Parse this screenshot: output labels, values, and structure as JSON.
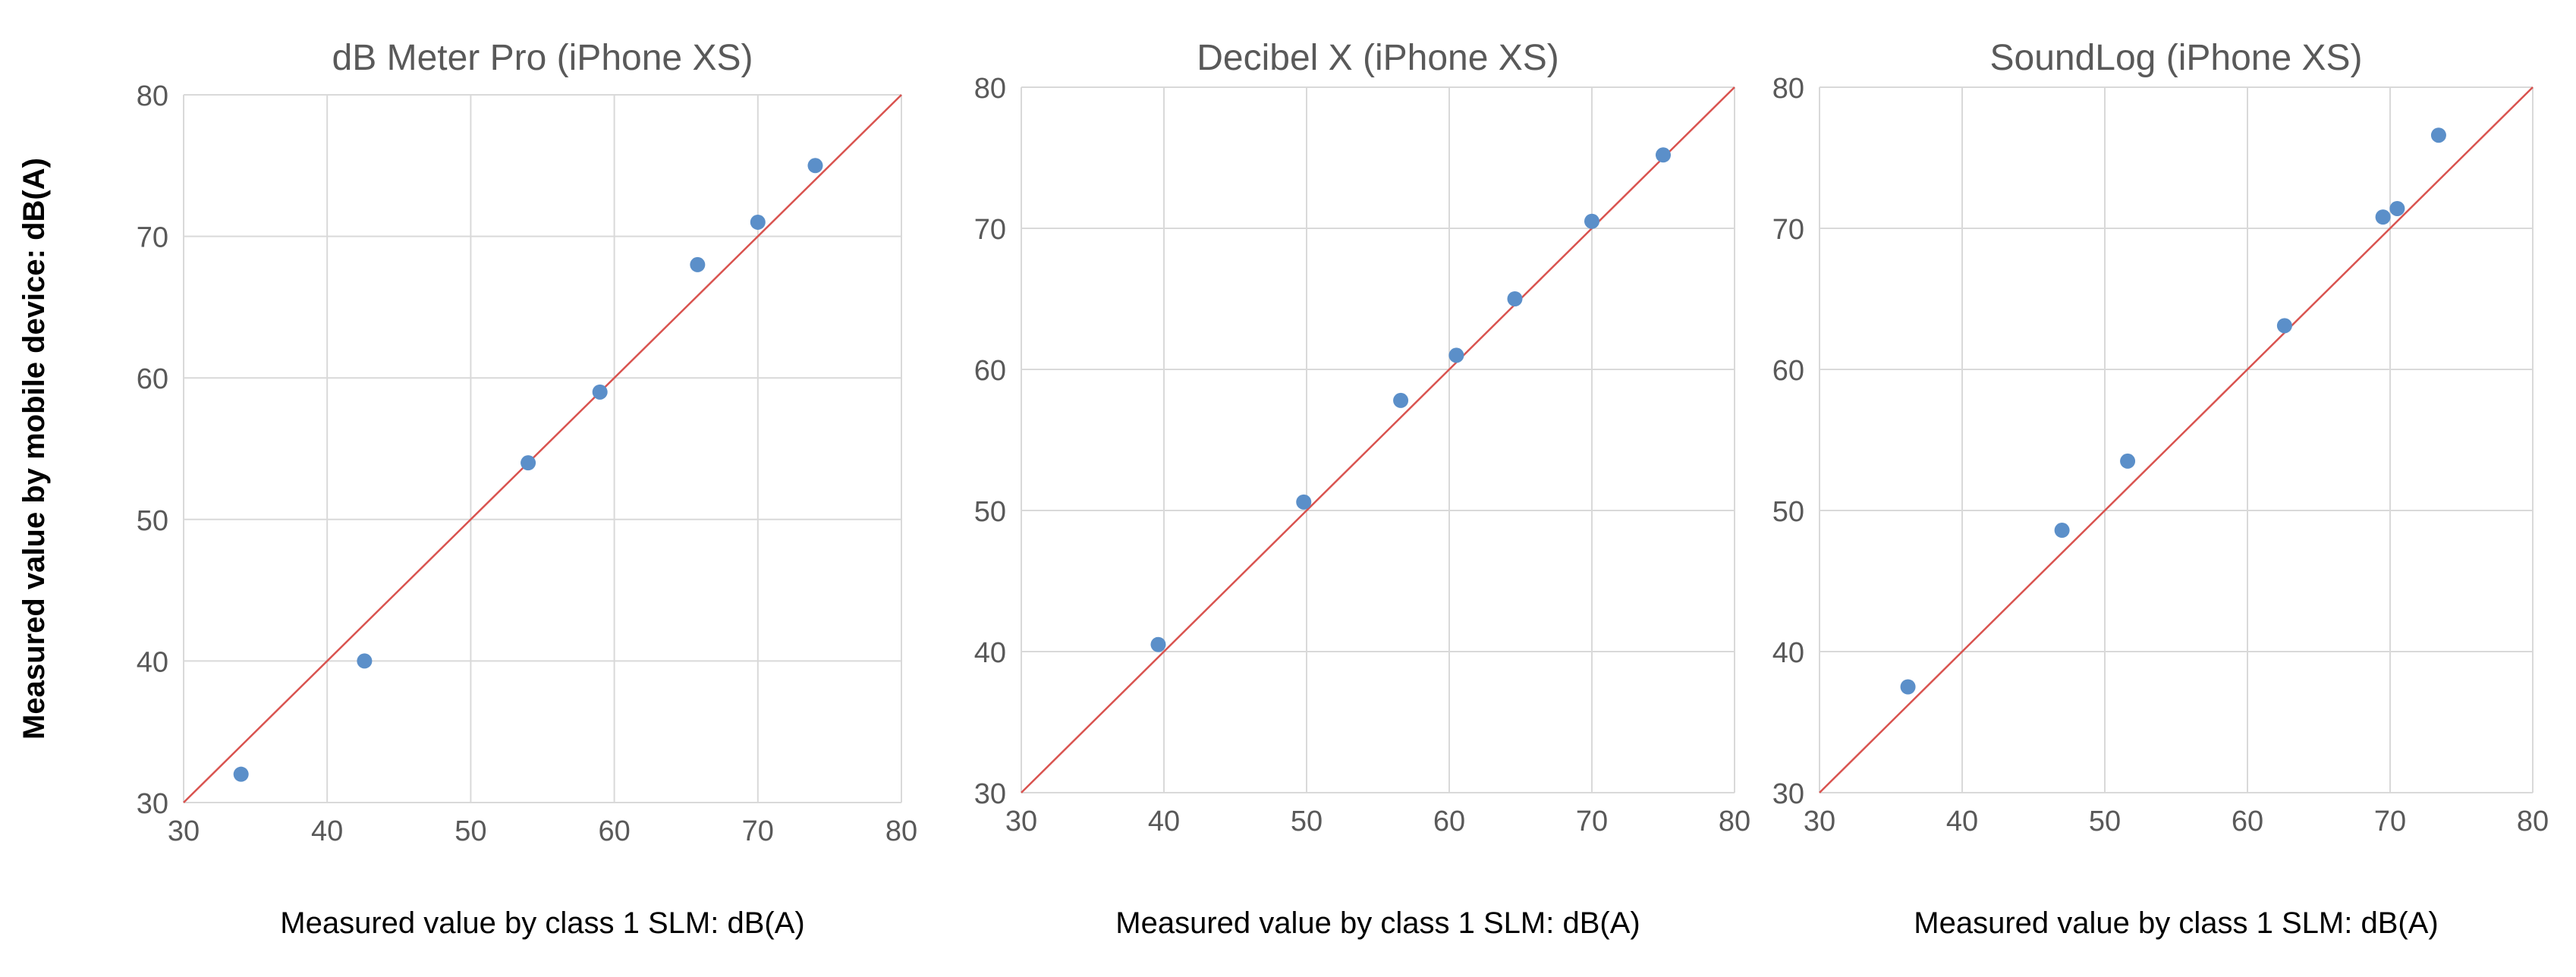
{
  "chart_data": [
    {
      "type": "scatter",
      "title": "dB Meter Pro (iPhone XS)",
      "xlabel": "Measured value by class 1 SLM: dB(A)",
      "ylabel": "Measured value by mobile device: dB(A)",
      "xlim": [
        30,
        80
      ],
      "ylim": [
        30,
        80
      ],
      "xticks": [
        "30",
        "40",
        "50",
        "60",
        "70",
        "80"
      ],
      "yticks": [
        "30",
        "40",
        "50",
        "60",
        "70",
        "80"
      ],
      "grid": true,
      "reference_line": {
        "from": [
          30,
          30
        ],
        "to": [
          80,
          80
        ],
        "color": "#d9534f"
      },
      "marker_color": "#5b8fc9",
      "points": [
        {
          "x": 34,
          "y": 32
        },
        {
          "x": 42.6,
          "y": 40
        },
        {
          "x": 54,
          "y": 54
        },
        {
          "x": 59,
          "y": 59
        },
        {
          "x": 65.8,
          "y": 68
        },
        {
          "x": 70,
          "y": 71
        },
        {
          "x": 74,
          "y": 75
        }
      ]
    },
    {
      "type": "scatter",
      "title": "Decibel X (iPhone XS)",
      "xlabel": "Measured value by class 1 SLM: dB(A)",
      "ylabel": "",
      "xlim": [
        30,
        80
      ],
      "ylim": [
        30,
        80
      ],
      "xticks": [
        "30",
        "40",
        "50",
        "60",
        "70",
        "80"
      ],
      "yticks": [
        "30",
        "40",
        "50",
        "60",
        "70",
        "80"
      ],
      "grid": true,
      "reference_line": {
        "from": [
          30,
          30
        ],
        "to": [
          80,
          80
        ],
        "color": "#d9534f"
      },
      "marker_color": "#5b8fc9",
      "points": [
        {
          "x": 39.6,
          "y": 40.5
        },
        {
          "x": 49.8,
          "y": 50.6
        },
        {
          "x": 56.6,
          "y": 57.8
        },
        {
          "x": 60.5,
          "y": 61
        },
        {
          "x": 64.6,
          "y": 65
        },
        {
          "x": 70,
          "y": 70.5
        },
        {
          "x": 75,
          "y": 75.2
        }
      ]
    },
    {
      "type": "scatter",
      "title": "SoundLog  (iPhone XS)",
      "xlabel": "Measured value by class 1 SLM: dB(A)",
      "ylabel": "",
      "xlim": [
        30,
        80
      ],
      "ylim": [
        30,
        80
      ],
      "xticks": [
        "30",
        "40",
        "50",
        "60",
        "70",
        "80"
      ],
      "yticks": [
        "30",
        "40",
        "50",
        "60",
        "70",
        "80"
      ],
      "grid": true,
      "reference_line": {
        "from": [
          30,
          30
        ],
        "to": [
          80,
          80
        ],
        "color": "#d9534f"
      },
      "marker_color": "#5b8fc9",
      "points": [
        {
          "x": 36.2,
          "y": 37.5
        },
        {
          "x": 47,
          "y": 48.6
        },
        {
          "x": 51.6,
          "y": 53.5
        },
        {
          "x": 62.6,
          "y": 63.1
        },
        {
          "x": 69.5,
          "y": 70.8
        },
        {
          "x": 70.5,
          "y": 71.4
        },
        {
          "x": 73.4,
          "y": 76.6
        }
      ]
    }
  ]
}
